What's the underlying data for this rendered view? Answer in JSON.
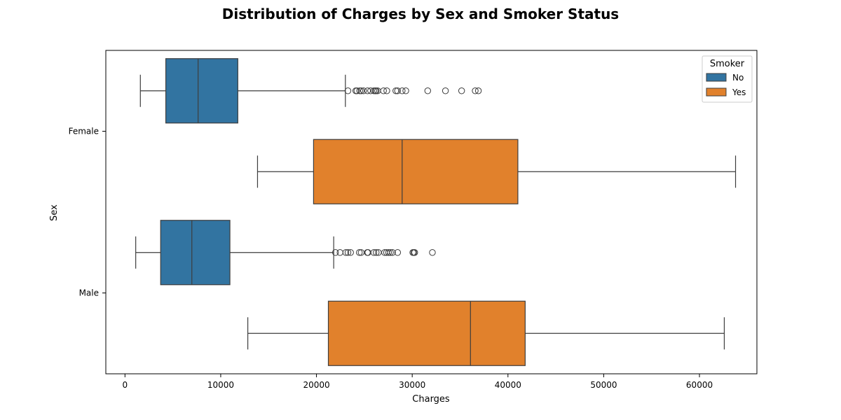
{
  "chart_data": {
    "type": "boxplot",
    "orientation": "horizontal",
    "title": "Distribution of Charges by Sex and Smoker Status",
    "xlabel": "Charges",
    "ylabel": "Sex",
    "xlim": [
      -2000,
      66000
    ],
    "xticks": [
      0,
      10000,
      20000,
      30000,
      40000,
      50000,
      60000
    ],
    "xtick_labels": [
      "0",
      "10000",
      "20000",
      "30000",
      "40000",
      "50000",
      "60000"
    ],
    "categories": [
      "Female",
      "Male"
    ],
    "grid": false,
    "legend": {
      "title": "Smoker",
      "position": "top-right"
    },
    "series": [
      {
        "name": "No",
        "color": "#3274a1",
        "boxes": [
          {
            "category": "Female",
            "whisker_low": 1607,
            "q1": 4265,
            "median": 7640,
            "q3": 11786,
            "whisker_high": 23020,
            "outliers": [
              23288,
              24106,
              24227,
              24513,
              24668,
              24915,
              25333,
              25656,
              25995,
              26140,
              26237,
              26393,
              27001,
              27347,
              28287,
              28468,
              28950,
              29331,
              31620,
              33472,
              35160,
              36580,
              36910
            ]
          },
          {
            "category": "Male",
            "whisker_low": 1122,
            "q1": 3725,
            "median": 6985,
            "q3": 10960,
            "whisker_high": 21800,
            "outliers": [
              21985,
              22462,
              23065,
              23290,
              23563,
              24476,
              24667,
              25309,
              25382,
              25992,
              26236,
              26467,
              27117,
              27322,
              27533,
              27724,
              27941,
              28476,
              30063,
              30166,
              30260,
              32108
            ]
          }
        ]
      },
      {
        "name": "Yes",
        "color": "#e1812c",
        "boxes": [
          {
            "category": "Female",
            "whisker_low": 13844,
            "q1": 19696,
            "median": 28950,
            "q3": 41034,
            "whisker_high": 63770,
            "outliers": []
          },
          {
            "category": "Male",
            "whisker_low": 12829,
            "q1": 21241,
            "median": 36085,
            "q3": 41797,
            "whisker_high": 62593,
            "outliers": []
          }
        ]
      }
    ]
  }
}
